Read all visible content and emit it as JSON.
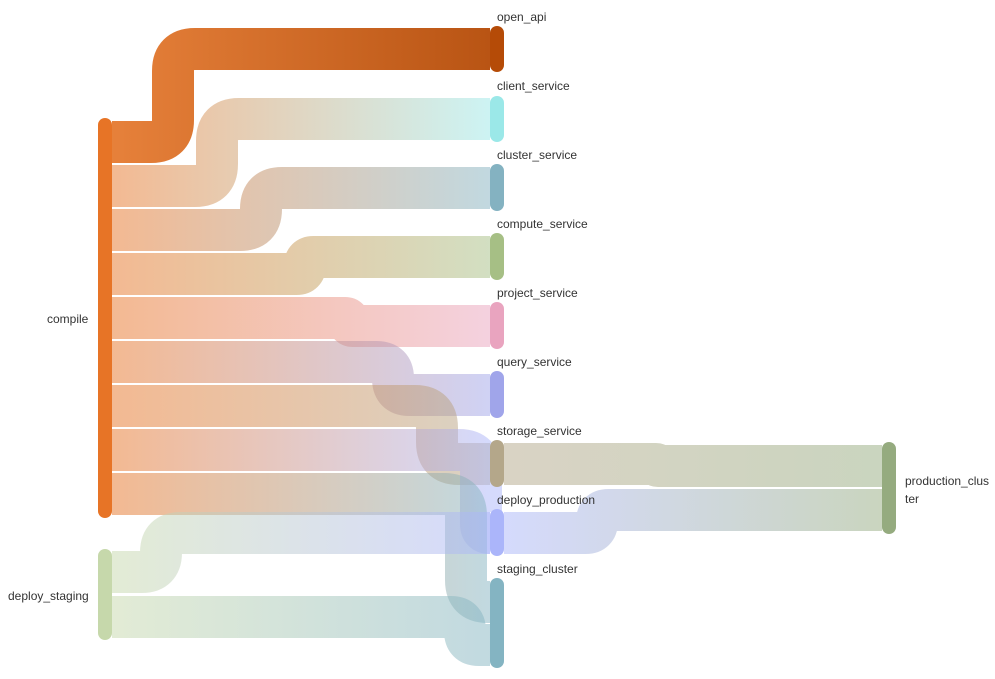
{
  "diagram": {
    "nodes": [
      {
        "id": "compile",
        "label": "compile",
        "color": "#e77426"
      },
      {
        "id": "deploy_staging",
        "label": "deploy_staging",
        "color": "#c6d8ab"
      },
      {
        "id": "open_api",
        "label": "open_api",
        "color": "#b54b07"
      },
      {
        "id": "client_service",
        "label": "client_service",
        "color": "#9be8e8"
      },
      {
        "id": "cluster_service",
        "label": "cluster_service",
        "color": "#84b2c1"
      },
      {
        "id": "compute_service",
        "label": "compute_service",
        "color": "#a6bf85"
      },
      {
        "id": "project_service",
        "label": "project_service",
        "color": "#e9a4bf"
      },
      {
        "id": "query_service",
        "label": "query_service",
        "color": "#a0a5ea"
      },
      {
        "id": "storage_service",
        "label": "storage_service",
        "color": "#b4a78a"
      },
      {
        "id": "deploy_production",
        "label": "deploy_production",
        "color": "#abb5fa"
      },
      {
        "id": "staging_cluster",
        "label": "staging_cluster",
        "color": "#84b4c2"
      },
      {
        "id": "production_cluster",
        "label": "production_cluster",
        "label_lines": [
          "production_clus",
          "ter"
        ],
        "color": "#95ab7f"
      }
    ],
    "links": [
      {
        "source": "compile",
        "target": "open_api",
        "value": 1
      },
      {
        "source": "compile",
        "target": "client_service",
        "value": 1
      },
      {
        "source": "compile",
        "target": "cluster_service",
        "value": 1
      },
      {
        "source": "compile",
        "target": "compute_service",
        "value": 1
      },
      {
        "source": "compile",
        "target": "project_service",
        "value": 1
      },
      {
        "source": "compile",
        "target": "query_service",
        "value": 1
      },
      {
        "source": "compile",
        "target": "storage_service",
        "value": 1
      },
      {
        "source": "compile",
        "target": "deploy_production",
        "value": 1
      },
      {
        "source": "compile",
        "target": "staging_cluster",
        "value": 1
      },
      {
        "source": "deploy_staging",
        "target": "deploy_production",
        "value": 1
      },
      {
        "source": "deploy_staging",
        "target": "staging_cluster",
        "value": 1
      },
      {
        "source": "storage_service",
        "target": "production_cluster",
        "value": 1
      },
      {
        "source": "deploy_production",
        "target": "production_cluster",
        "value": 1
      }
    ]
  }
}
